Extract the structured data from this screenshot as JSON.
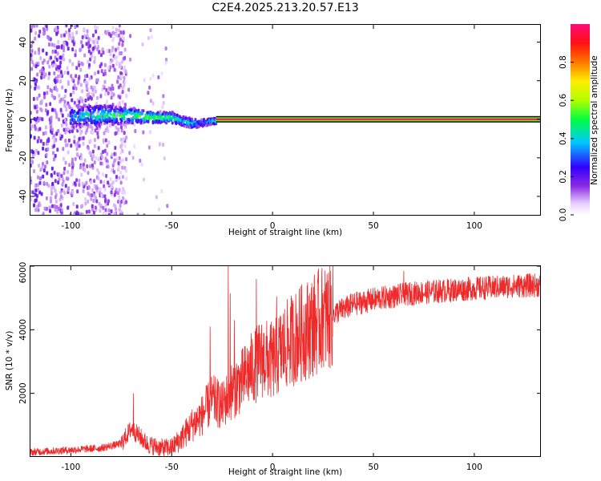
{
  "figure": {
    "title": "C2E4.2025.213.20.57.E13"
  },
  "colors": {
    "snr_line": "#ee2a2a",
    "band_center": "#ff2060",
    "band_edge": "#111111",
    "frame": "#000000"
  },
  "chart_data": [
    {
      "type": "heatmap",
      "name": "spectrogram",
      "xlabel": "Height of straight line (km)",
      "ylabel": "Frequency (Hz)",
      "xlim": [
        -120,
        133
      ],
      "ylim": [
        -50,
        49
      ],
      "x_ticks": [
        -100,
        -50,
        0,
        50,
        100
      ],
      "y_ticks": [
        -40,
        -20,
        0,
        20,
        40
      ],
      "colorbar": {
        "label": "Normalized spectral amplitude",
        "range": [
          0,
          1
        ],
        "ticks": [
          0.0,
          0.2,
          0.4,
          0.6,
          0.8
        ],
        "colormap": "rainbow (white-purple-blue-cyan-green-yellow-red-magenta)"
      },
      "carrier": {
        "frequency_hz": 0,
        "start_height_km": -28,
        "end_height_km": 133,
        "amplitude": 1.0
      },
      "noise_region_km": [
        -120,
        -52
      ],
      "dispersed_band": {
        "heights_km": [
          -100,
          -90,
          -80,
          -70,
          -60,
          -50,
          -45,
          -40,
          -35,
          -30
        ],
        "center_freq_hz": [
          1,
          2,
          2,
          2,
          1,
          1,
          -1,
          -2,
          -2,
          -1
        ],
        "half_width_hz": [
          6,
          6,
          5,
          4,
          3,
          3,
          2.5,
          2.5,
          2,
          1.5
        ],
        "amplitude": [
          0.3,
          0.4,
          0.45,
          0.5,
          0.5,
          0.45,
          0.35,
          0.4,
          0.25,
          0.4
        ]
      }
    },
    {
      "type": "line",
      "name": "snr",
      "xlabel": "Height of straight line (km)",
      "ylabel": "SNR (10 * v/v)",
      "xlim": [
        -120,
        133
      ],
      "ylim": [
        0,
        6000
      ],
      "x_ticks": [
        -100,
        -50,
        0,
        50,
        100
      ],
      "y_ticks": [
        2000,
        4000,
        6000
      ],
      "trend": {
        "x": [
          -120,
          -100,
          -85,
          -75,
          -70,
          -66,
          -62,
          -55,
          -50,
          -45,
          -40,
          -35,
          -30,
          -25,
          -20,
          -15,
          -10,
          -5,
          0,
          5,
          10,
          20,
          30,
          40,
          50,
          60,
          70,
          80,
          90,
          100,
          110,
          120,
          133
        ],
        "y": [
          150,
          220,
          280,
          420,
          900,
          650,
          400,
          280,
          300,
          600,
          1000,
          1300,
          1800,
          1600,
          2100,
          2400,
          2800,
          3100,
          3000,
          3400,
          3700,
          4150,
          4500,
          4800,
          4950,
          5050,
          5150,
          5200,
          5250,
          5300,
          5330,
          5380,
          5400
        ]
      },
      "spikes": [
        {
          "x": -69,
          "y": 2000
        },
        {
          "x": -31,
          "y": 4100
        },
        {
          "x": -22,
          "y": 6000
        },
        {
          "x": -21,
          "y": 5150
        },
        {
          "x": -19,
          "y": 4300
        },
        {
          "x": -8,
          "y": 5600
        },
        {
          "x": 2,
          "y": 5050
        },
        {
          "x": 25,
          "y": 5150
        },
        {
          "x": 65,
          "y": 5850
        }
      ]
    }
  ]
}
